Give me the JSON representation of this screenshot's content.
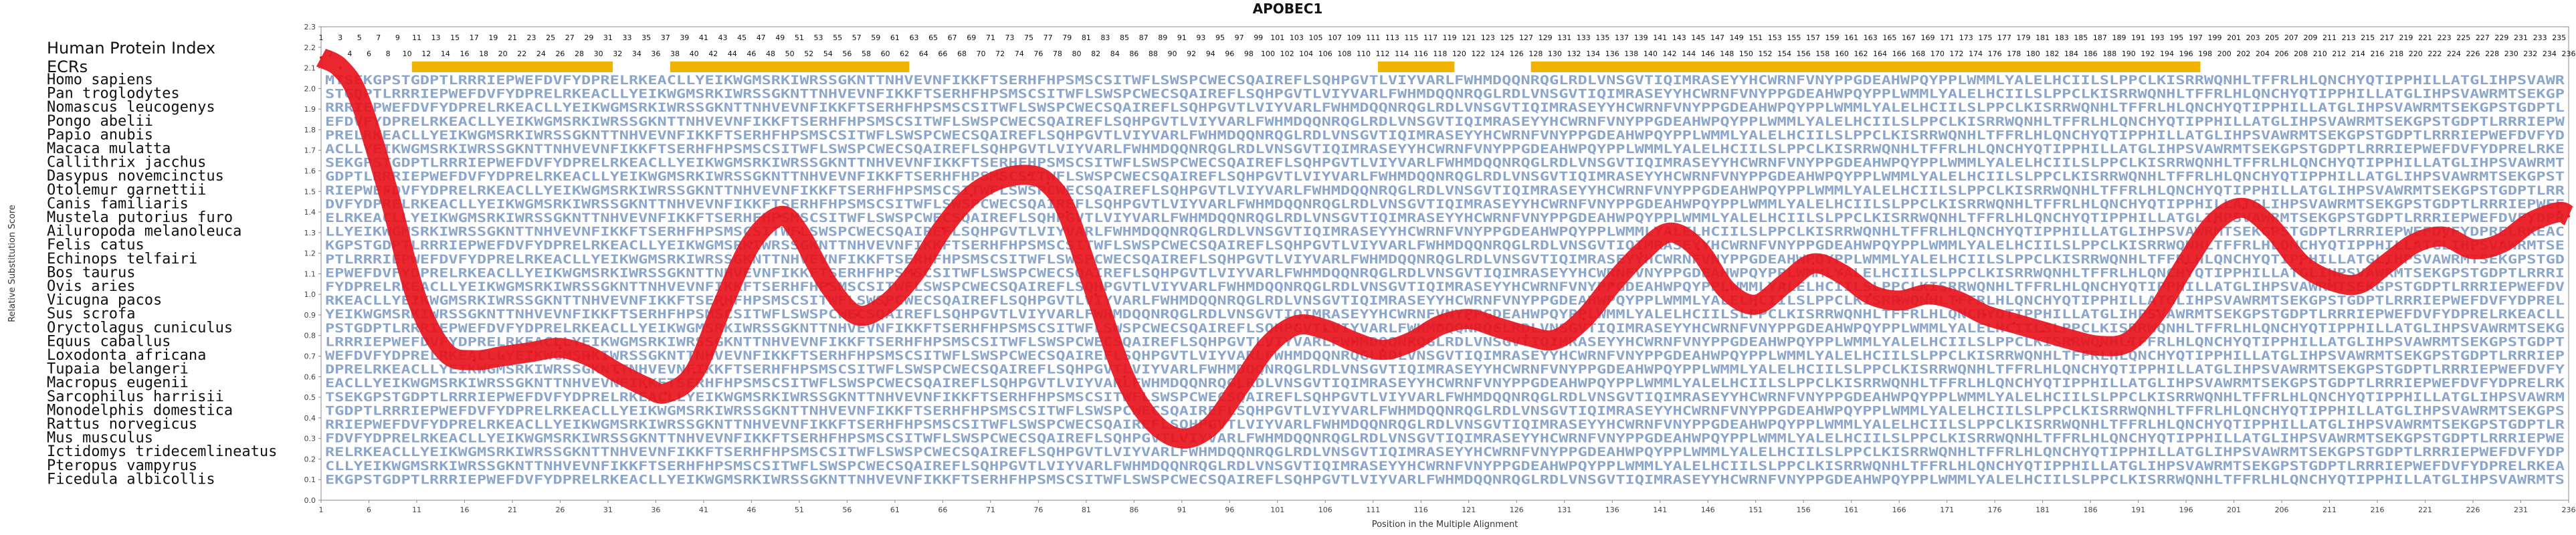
{
  "chart_data": {
    "type": "line",
    "title": "APOBEC1",
    "xlabel": "Position in the Multiple Alignment",
    "ylabel": "Relative Substitution Score",
    "ylim": [
      0.0,
      2.3
    ],
    "xlim": [
      1,
      236
    ],
    "yticks": [
      "0.0",
      "0.1",
      "0.2",
      "0.3",
      "0.4",
      "0.5",
      "0.6",
      "0.7",
      "0.8",
      "0.9",
      "1.0",
      "1.1",
      "1.2",
      "1.3",
      "1.4",
      "1.5",
      "1.6",
      "1.7",
      "1.8",
      "1.9",
      "2.0",
      "2.1",
      "2.2",
      "2.3"
    ],
    "xticks": [
      "1",
      "6",
      "11",
      "16",
      "21",
      "26",
      "31",
      "36",
      "41",
      "46",
      "51",
      "56",
      "61",
      "66",
      "71",
      "76",
      "81",
      "86",
      "91",
      "96",
      "101",
      "106",
      "111",
      "116",
      "121",
      "126",
      "131",
      "136",
      "141",
      "146",
      "151",
      "156",
      "161",
      "166",
      "171",
      "176",
      "181",
      "186",
      "191",
      "196",
      "201",
      "206",
      "211",
      "216",
      "221",
      "226",
      "231",
      "236"
    ],
    "row_labels": {
      "human_protein_index": "Human Protein Index",
      "ecrs": "ECRs"
    },
    "species": [
      "Homo sapiens",
      "Pan troglodytes",
      "Nomascus leucogenys",
      "Pongo abelii",
      "Papio anubis",
      "Macaca mulatta",
      "Callithrix jacchus",
      "Dasypus novemcinctus",
      "Otolemur garnettii",
      "Canis familiaris",
      "Mustela putorius furo",
      "Ailuropoda melanoleuca",
      "Felis catus",
      "Echinops telfairi",
      "Bos taurus",
      "Ovis aries",
      "Vicugna pacos",
      "Sus scrofa",
      "Oryctolagus cuniculus",
      "Equus caballus",
      "Loxodonta africana",
      "Tupaia belangeri",
      "Macropus eugenii",
      "Sarcophilus harrisii",
      "Monodelphis domestica",
      "Rattus norvegicus",
      "Mus musculus",
      "Ictidomys tridecemlineatus",
      "Pteropus vampyrus",
      "Ficedula albicollis"
    ],
    "ecr_regions": [
      [
        11,
        31
      ],
      [
        38,
        62
      ],
      [
        112,
        119
      ],
      [
        128,
        197
      ]
    ],
    "series": [
      {
        "color": "#e8141c",
        "x": [
          1,
          3,
          5,
          8,
          11,
          14,
          17,
          20,
          23,
          26,
          29,
          32,
          35,
          37,
          40,
          43,
          46,
          49,
          51,
          54,
          57,
          60,
          63,
          66,
          69,
          72,
          75,
          77,
          79,
          82,
          85,
          88,
          91,
          94,
          97,
          100,
          103,
          106,
          109,
          112,
          115,
          118,
          121,
          124,
          127,
          130,
          133,
          136,
          139,
          142,
          145,
          148,
          151,
          154,
          157,
          160,
          163,
          166,
          169,
          172,
          175,
          178,
          181,
          184,
          187,
          190,
          193,
          196,
          199,
          202,
          205,
          208,
          211,
          214,
          217,
          220,
          223,
          226,
          229,
          232,
          235,
          236
        ],
        "values": [
          2.15,
          2.1,
          1.95,
          1.5,
          0.98,
          0.72,
          0.68,
          0.7,
          0.72,
          0.74,
          0.7,
          0.62,
          0.55,
          0.52,
          0.62,
          0.95,
          1.25,
          1.38,
          1.3,
          1.05,
          0.9,
          0.95,
          1.1,
          1.32,
          1.48,
          1.56,
          1.58,
          1.54,
          1.4,
          1.0,
          0.6,
          0.38,
          0.3,
          0.36,
          0.55,
          0.75,
          0.85,
          0.83,
          0.77,
          0.73,
          0.77,
          0.85,
          0.88,
          0.84,
          0.8,
          0.78,
          0.88,
          1.05,
          1.2,
          1.3,
          1.22,
          1.02,
          0.95,
          1.05,
          1.15,
          1.1,
          1.0,
          0.97,
          1.0,
          0.97,
          0.9,
          0.86,
          0.82,
          0.78,
          0.75,
          0.77,
          0.92,
          1.15,
          1.35,
          1.42,
          1.32,
          1.15,
          1.07,
          1.05,
          1.15,
          1.25,
          1.28,
          1.22,
          1.25,
          1.35,
          1.4,
          1.38
        ]
      }
    ]
  },
  "colors": {
    "line": "#e8141c",
    "ecr": "#f0b400",
    "sequence": "#2b5d9e",
    "axis": "#555555"
  }
}
